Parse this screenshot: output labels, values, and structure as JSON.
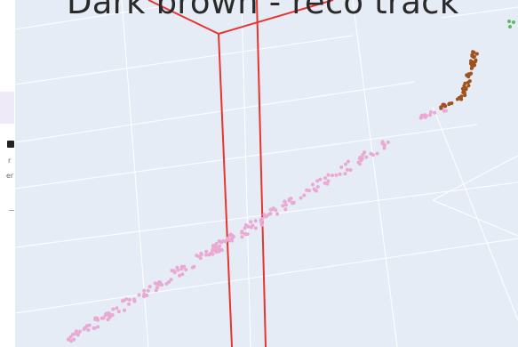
{
  "left_panel": {
    "char_1": "r",
    "char_2": "er"
  },
  "plot": {
    "title": "Dark brown - reco track",
    "colors": {
      "background": "#e5ecf6",
      "grid": "#ffffff",
      "box": "#e8342f",
      "hits": "#eaa9d3",
      "track": "#a1521c",
      "other": "#5dbb5d"
    }
  }
}
